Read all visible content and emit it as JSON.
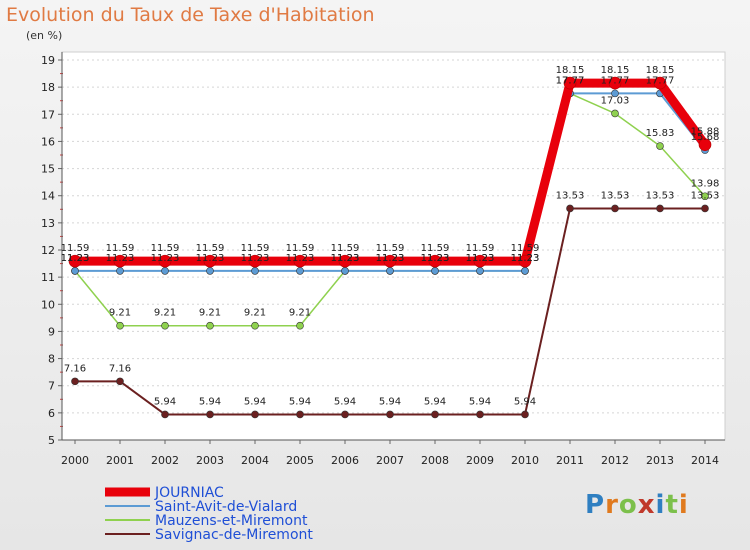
{
  "chart_data": {
    "type": "line",
    "title": "Evolution du Taux de Taxe d'Habitation",
    "ylabel": "(en %)",
    "xlabel": "",
    "x": [
      "2000",
      "2001",
      "2002",
      "2003",
      "2004",
      "2005",
      "2006",
      "2007",
      "2008",
      "2009",
      "2010",
      "2011",
      "2012",
      "2013",
      "2014"
    ],
    "ylim": [
      5,
      19
    ],
    "yticks": [
      5,
      6,
      7,
      8,
      9,
      10,
      11,
      12,
      13,
      14,
      15,
      16,
      17,
      18,
      19
    ],
    "grid": "horizontal-dashed",
    "legend": "bottom-left",
    "series": [
      {
        "name": "JOURNIAC",
        "color": "#e8000b",
        "values": [
          11.59,
          11.59,
          11.59,
          11.59,
          11.59,
          11.59,
          11.59,
          11.59,
          11.59,
          11.59,
          11.59,
          18.15,
          18.15,
          18.15,
          15.88
        ],
        "labels": [
          "11.59",
          "11.59",
          "11.59",
          "11.59",
          "11.59",
          "11.59",
          "11.59",
          "11.59",
          "11.59",
          "11.59",
          "11.59",
          "18.15",
          "18.15",
          "18.15",
          "15.88"
        ]
      },
      {
        "name": "Saint-Avit-de-Vialard",
        "color": "#5c9bd4",
        "values": [
          11.23,
          11.23,
          11.23,
          11.23,
          11.23,
          11.23,
          11.23,
          11.23,
          11.23,
          11.23,
          11.23,
          17.77,
          17.77,
          17.77,
          15.68
        ],
        "labels": [
          "11.23",
          "11.23",
          "11.23",
          "11.23",
          "11.23",
          "11.23",
          "11.23",
          "11.23",
          "11.23",
          "11.23",
          "11.23",
          "17.77",
          "17.77",
          "17.77",
          "15.68"
        ]
      },
      {
        "name": "Mauzens-et-Miremont",
        "color": "#8fd14f",
        "values": [
          11.23,
          9.21,
          9.21,
          9.21,
          9.21,
          9.21,
          11.23,
          11.23,
          11.23,
          11.23,
          11.23,
          17.77,
          17.03,
          15.83,
          13.98
        ],
        "labels": [
          "11.23",
          "9.21",
          "9.21",
          "9.21",
          "9.21",
          "9.21",
          "11.23",
          "11.23",
          "11.23",
          "11.23",
          "11.23",
          "17.77",
          "17.03",
          "15.83",
          "13.98"
        ]
      },
      {
        "name": "Savignac-de-Miremont",
        "color": "#6b2020",
        "values": [
          7.16,
          7.16,
          5.94,
          5.94,
          5.94,
          5.94,
          5.94,
          5.94,
          5.94,
          5.94,
          5.94,
          13.53,
          13.53,
          13.53,
          13.53
        ],
        "labels": [
          "7.16",
          "7.16",
          "5.94",
          "5.94",
          "5.94",
          "5.94",
          "5.94",
          "5.94",
          "5.94",
          "5.94",
          "5.94",
          "13.53",
          "13.53",
          "13.53",
          "13.53"
        ]
      }
    ]
  },
  "logo": {
    "letters": [
      "P",
      "r",
      "o",
      "x",
      "i",
      "t",
      "i"
    ],
    "colors": [
      "#2f7fc1",
      "#e07a1e",
      "#7cc04b",
      "#c0392b",
      "#2f7fc1",
      "#7cc04b",
      "#e07a1e"
    ]
  }
}
